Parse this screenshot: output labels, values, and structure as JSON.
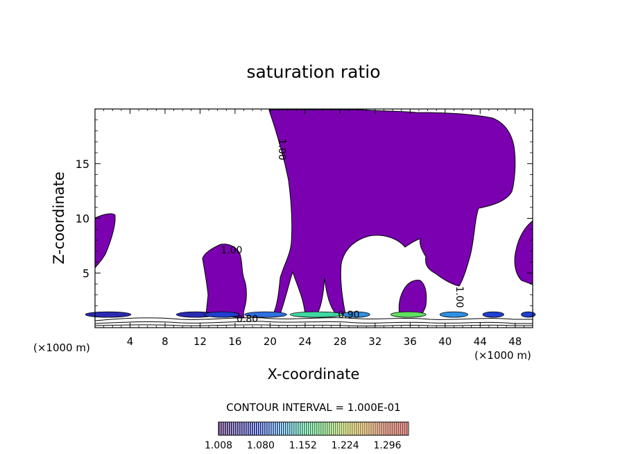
{
  "chart_data": {
    "type": "heatmap",
    "title": "saturation ratio",
    "xlabel": "X-coordinate",
    "ylabel": "Z-coordinate",
    "x_unit": "(×1000 m)",
    "z_unit": "(×1000 m)",
    "xlim": [
      0,
      50
    ],
    "ylim": [
      0,
      20
    ],
    "x_ticks": [
      4,
      8,
      12,
      16,
      20,
      24,
      28,
      32,
      36,
      40,
      44,
      48
    ],
    "y_ticks": [
      5,
      10,
      15
    ],
    "contour_interval_label": "CONTOUR INTERVAL = 1.000E-01",
    "contour_labels": [
      {
        "text": "1.00",
        "x": 21.0,
        "z": 16.3,
        "rotate": 90
      },
      {
        "text": "1.00",
        "x": 15.6,
        "z": 6.8,
        "rotate": 0
      },
      {
        "text": "0.80",
        "x": 17.4,
        "z": 0.5,
        "rotate": 0
      },
      {
        "text": "0.90",
        "x": 29.0,
        "z": 0.9,
        "rotate": 0
      },
      {
        "text": "1.00",
        "x": 41.3,
        "z": 2.8,
        "rotate": 90
      }
    ],
    "colorbar": {
      "min": 1.008,
      "max": 1.332,
      "tick_labels": [
        "1.008",
        "1.080",
        "1.152",
        "1.224",
        "1.296"
      ],
      "colors": [
        "#3a0060",
        "#2a1a9a",
        "#1f3fd0",
        "#2f8fe0",
        "#3fd8a0",
        "#60e060",
        "#c8e040",
        "#e8b040",
        "#e06040",
        "#d04040"
      ]
    },
    "fill_color": "#7a00b0",
    "supersaturated_regions": [
      {
        "name": "left-edge",
        "x_range": [
          0,
          2.1
        ],
        "z_range": [
          5.4,
          10.4
        ]
      },
      {
        "name": "small-left-tower",
        "x_range": [
          12.3,
          17.5
        ],
        "z_range": [
          1.0,
          7.8
        ]
      },
      {
        "name": "large-anvil-cloud",
        "x_range": [
          20,
          48
        ],
        "z_range": [
          1.0,
          20
        ]
      },
      {
        "name": "tower-36",
        "x_range": [
          34.7,
          38.5
        ],
        "z_range": [
          1.0,
          4.2
        ]
      },
      {
        "name": "right-edge",
        "x_range": [
          48.3,
          50
        ],
        "z_range": [
          4.0,
          9.8
        ]
      }
    ],
    "grid": false
  }
}
